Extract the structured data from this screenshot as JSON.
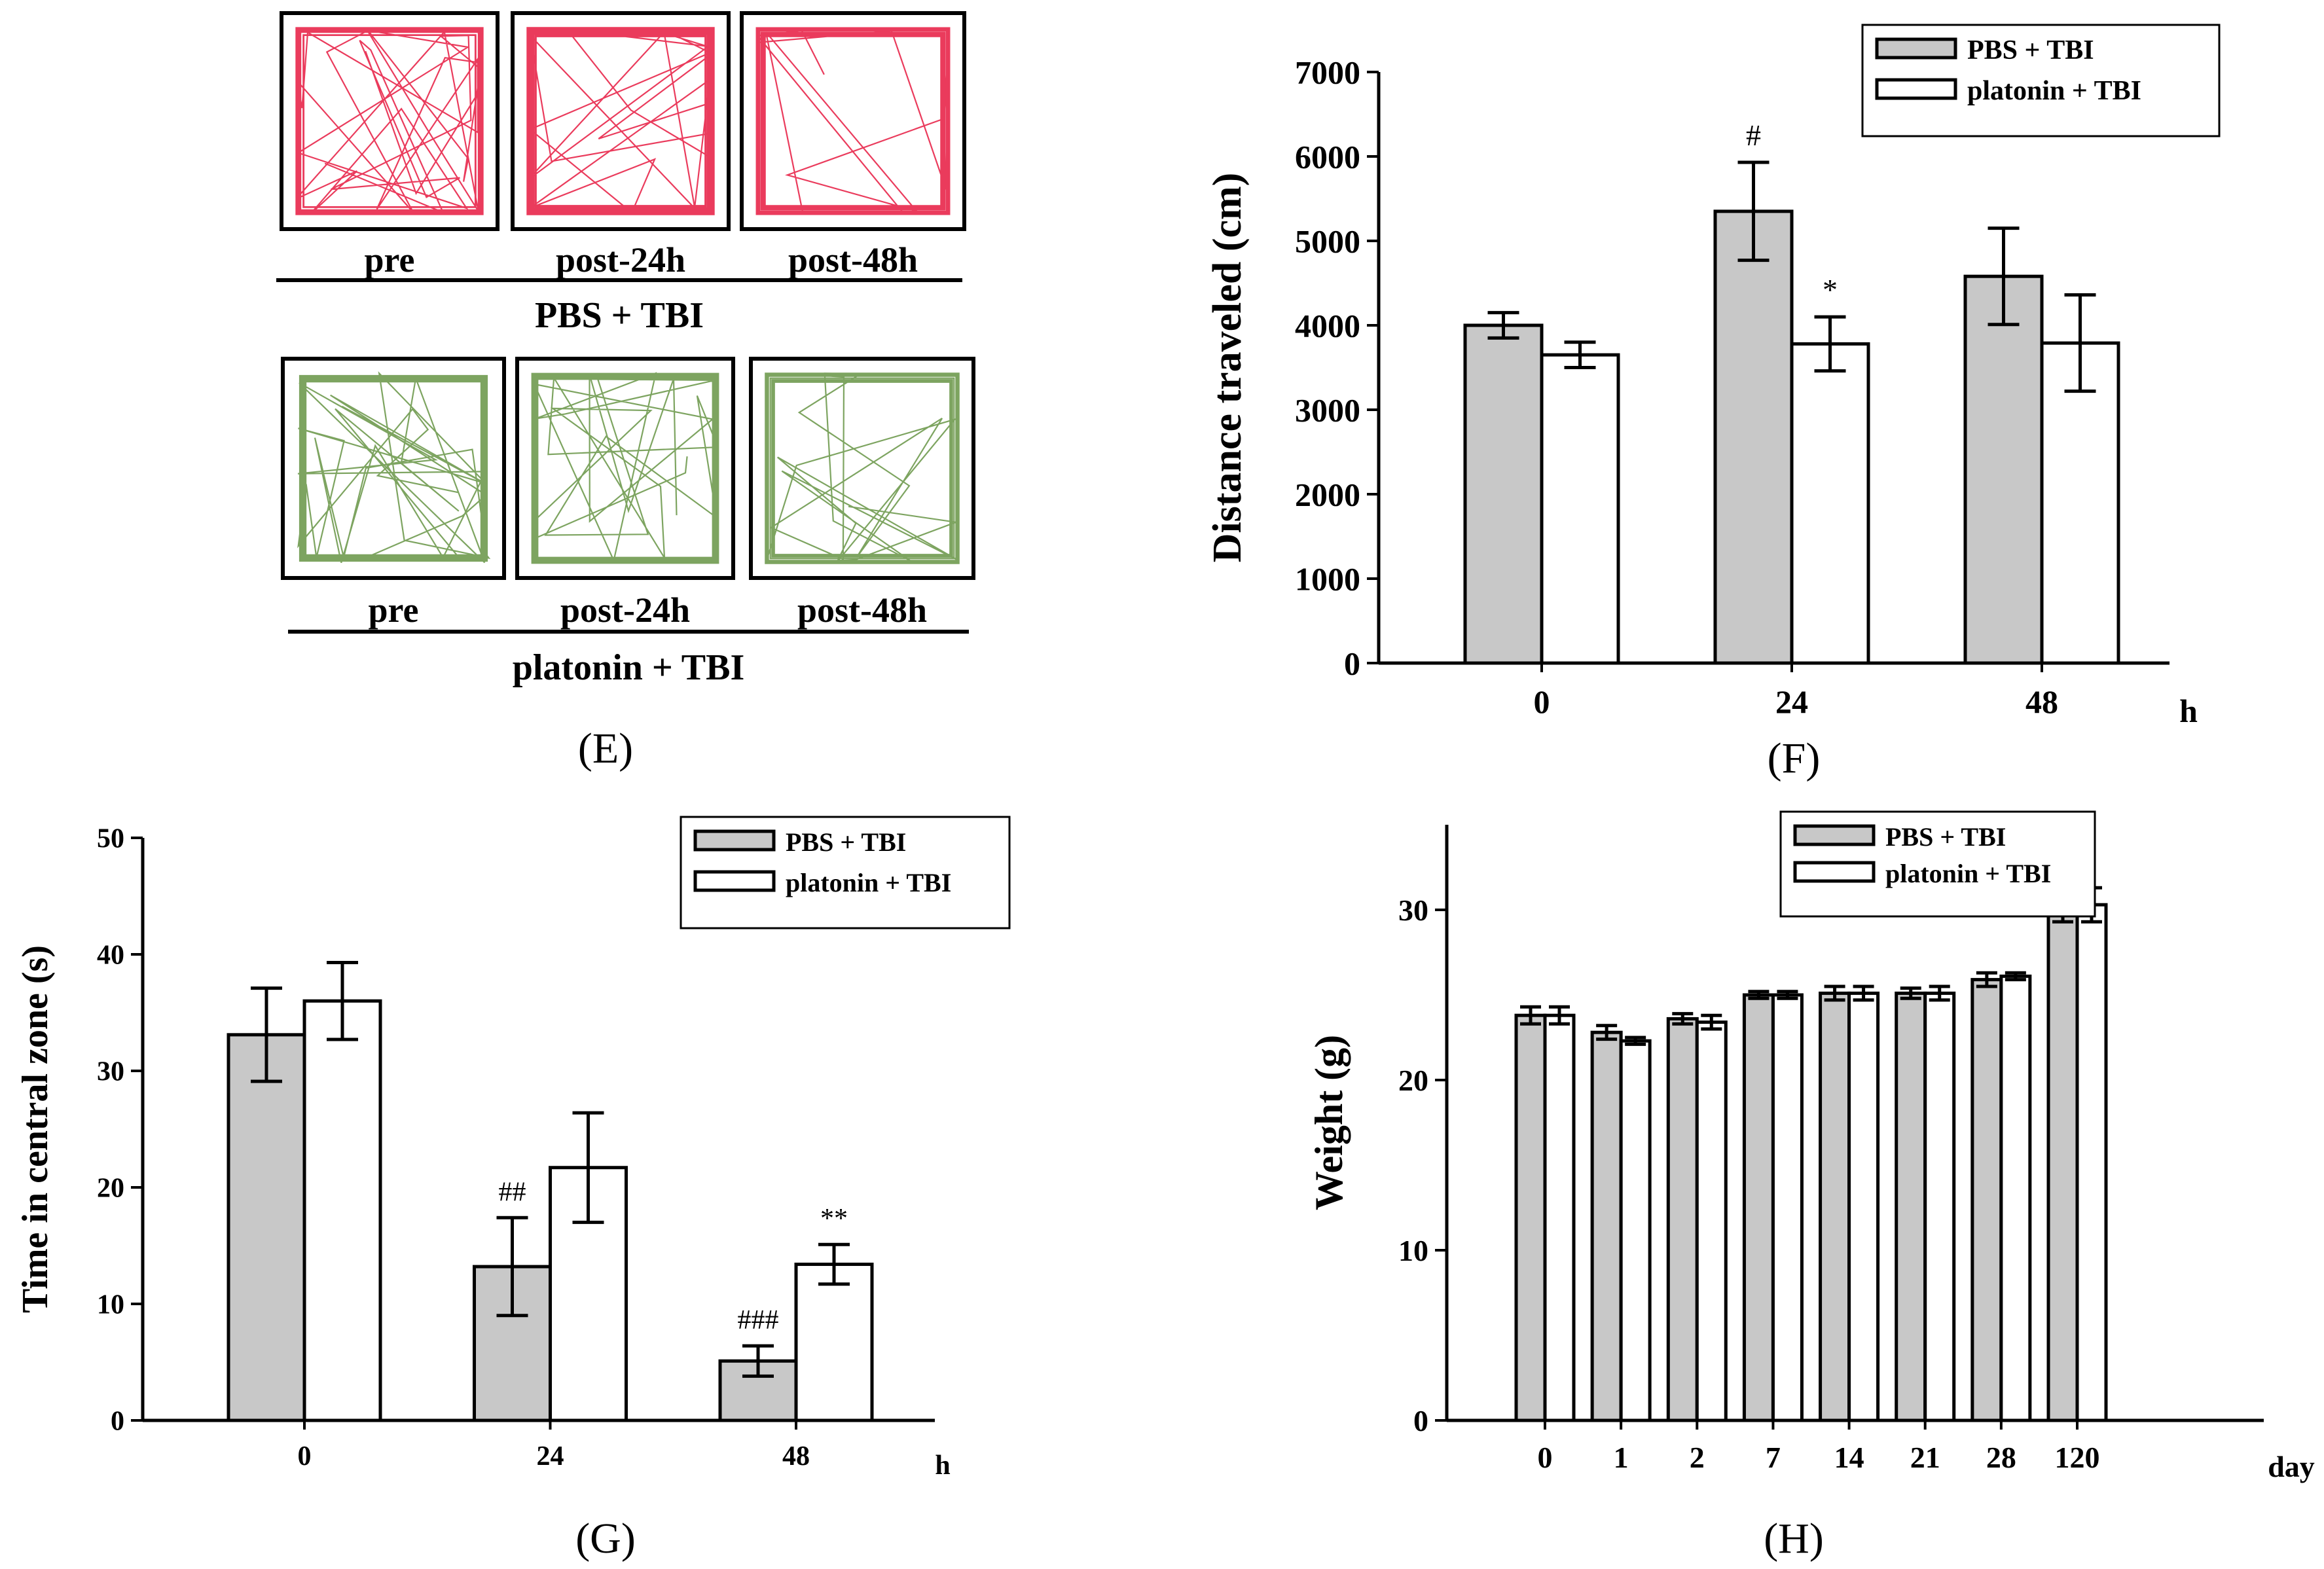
{
  "panels": {
    "E": {
      "label": "(E)",
      "groups": [
        {
          "name": "PBS + TBI",
          "color": "#e8264a",
          "boxes": [
            "pre",
            "post-24h",
            "post-48h"
          ],
          "coverage": [
            0.95,
            0.55,
            0.3
          ]
        },
        {
          "name": "platonin + TBI",
          "color": "#6f9a4f",
          "boxes": [
            "pre",
            "post-24h",
            "post-48h"
          ],
          "coverage": [
            0.9,
            0.7,
            0.55
          ]
        }
      ]
    },
    "F": {
      "label": "(F)"
    },
    "G": {
      "label": "(G)"
    },
    "H": {
      "label": "(H)"
    }
  },
  "colors": {
    "pbs": "#c8c8c8",
    "platonin": "#ffffff",
    "stroke": "#000000"
  },
  "chart_data": [
    {
      "id": "F",
      "type": "bar",
      "ylabel": "Distance traveled (cm)",
      "xunit": "h",
      "categories": [
        "0",
        "24",
        "48"
      ],
      "ylim": [
        0,
        7000
      ],
      "yticks": [
        0,
        1000,
        2000,
        3000,
        4000,
        5000,
        6000,
        7000
      ],
      "legend": "top-right",
      "series": [
        {
          "name": "PBS + TBI",
          "values": [
            4000,
            5350,
            4580
          ],
          "errors": [
            150,
            580,
            570
          ]
        },
        {
          "name": "platonin + TBI",
          "values": [
            3650,
            3780,
            3790
          ],
          "errors": [
            150,
            320,
            570
          ]
        }
      ],
      "annotations": [
        {
          "category": "24",
          "series": "PBS + TBI",
          "text": "#"
        },
        {
          "category": "24",
          "series": "platonin + TBI",
          "text": "*"
        }
      ]
    },
    {
      "id": "G",
      "type": "bar",
      "ylabel": "Time in central zone (s)",
      "xunit": "h",
      "categories": [
        "0",
        "24",
        "48"
      ],
      "ylim": [
        0,
        50
      ],
      "yticks": [
        0,
        10,
        20,
        30,
        40,
        50
      ],
      "legend": "top-right",
      "series": [
        {
          "name": "PBS + TBI",
          "values": [
            33.1,
            13.2,
            5.1
          ],
          "errors": [
            4.0,
            4.2,
            1.3
          ]
        },
        {
          "name": "platonin + TBI",
          "values": [
            36.0,
            21.7,
            13.4
          ],
          "errors": [
            3.3,
            4.7,
            1.7
          ]
        }
      ],
      "annotations": [
        {
          "category": "24",
          "series": "PBS + TBI",
          "text": "##"
        },
        {
          "category": "48",
          "series": "PBS + TBI",
          "text": "###"
        },
        {
          "category": "48",
          "series": "platonin + TBI",
          "text": "**"
        }
      ]
    },
    {
      "id": "H",
      "type": "bar",
      "ylabel": "Weight (g)",
      "xunit": "day",
      "categories": [
        "0",
        "1",
        "2",
        "7",
        "14",
        "21",
        "28",
        "120"
      ],
      "ylim": [
        0,
        35
      ],
      "yticks": [
        0,
        10,
        20,
        30
      ],
      "legend": "top-center",
      "series": [
        {
          "name": "PBS + TBI",
          "values": [
            23.8,
            22.8,
            23.6,
            25.0,
            25.1,
            25.1,
            25.9,
            30.5
          ],
          "errors": [
            0.5,
            0.4,
            0.3,
            0.2,
            0.4,
            0.3,
            0.4,
            1.2
          ]
        },
        {
          "name": "platonin + TBI",
          "values": [
            23.8,
            22.3,
            23.4,
            25.0,
            25.1,
            25.1,
            26.1,
            30.3
          ],
          "errors": [
            0.5,
            0.2,
            0.4,
            0.2,
            0.4,
            0.4,
            0.2,
            1.0
          ]
        }
      ],
      "annotations": []
    }
  ]
}
